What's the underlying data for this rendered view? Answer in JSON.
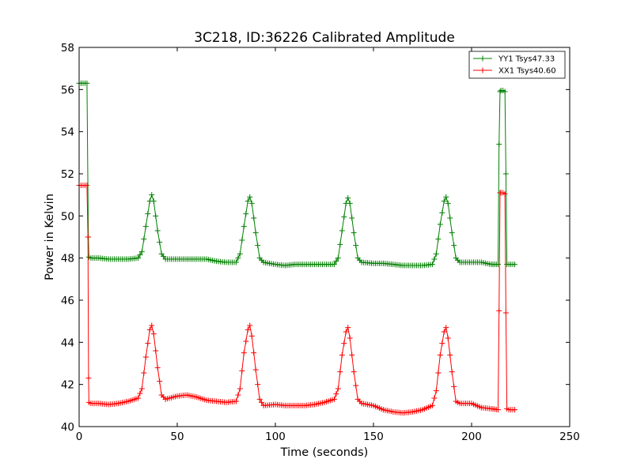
{
  "chart_data": {
    "type": "line",
    "title": "3C218, ID:36226 Calibrated Amplitude",
    "xlabel": "Time (seconds)",
    "ylabel": "Power in Kelvin",
    "xlim": [
      0,
      250
    ],
    "ylim": [
      40,
      58
    ],
    "xticks": [
      "0",
      "50",
      "100",
      "150",
      "200",
      "250"
    ],
    "yticks": [
      "40",
      "42",
      "44",
      "46",
      "48",
      "50",
      "52",
      "54",
      "56",
      "58"
    ],
    "grid": false,
    "legend_position": "top-right",
    "marker": "+",
    "series": [
      {
        "name": "YY1 Tsys47.33",
        "color": "#008000",
        "x": [
          0,
          2,
          4,
          4.7,
          5,
          6,
          10,
          15,
          20,
          25,
          30,
          32,
          34,
          36,
          37,
          38,
          40,
          42,
          44,
          50,
          55,
          60,
          65,
          70,
          75,
          80,
          82,
          84,
          86,
          87,
          88,
          90,
          92,
          94,
          100,
          105,
          110,
          115,
          120,
          125,
          130,
          132,
          134,
          136,
          137,
          138,
          140,
          142,
          144,
          150,
          155,
          160,
          165,
          170,
          175,
          180,
          182,
          184,
          186,
          187,
          188,
          190,
          192,
          194,
          200,
          205,
          210,
          213.5,
          214,
          214.5,
          215,
          216,
          217,
          217.5,
          218,
          219,
          220,
          222
        ],
        "y": [
          56.3,
          56.3,
          56.3,
          49.0,
          48.05,
          48.0,
          48.0,
          47.95,
          47.95,
          47.95,
          48.0,
          48.3,
          49.5,
          50.7,
          51.0,
          50.7,
          49.3,
          48.2,
          47.95,
          47.95,
          47.95,
          47.95,
          47.95,
          47.85,
          47.8,
          47.8,
          48.2,
          49.5,
          50.7,
          50.9,
          50.6,
          49.2,
          48.0,
          47.8,
          47.7,
          47.65,
          47.7,
          47.7,
          47.7,
          47.7,
          47.7,
          48.0,
          49.3,
          50.6,
          50.85,
          50.6,
          49.2,
          48.0,
          47.8,
          47.75,
          47.75,
          47.7,
          47.65,
          47.65,
          47.65,
          47.7,
          48.2,
          49.6,
          50.7,
          50.9,
          50.6,
          49.2,
          48.0,
          47.8,
          47.8,
          47.8,
          47.7,
          47.7,
          53.4,
          55.9,
          55.95,
          55.95,
          55.9,
          52.0,
          47.7,
          47.7,
          47.7,
          47.7
        ]
      },
      {
        "name": "XX1 Tsys40.60",
        "color": "#ff0000",
        "x": [
          0,
          2,
          4,
          4.5,
          4.8,
          5,
          6,
          10,
          15,
          20,
          25,
          30,
          32,
          34,
          36,
          37,
          38,
          40,
          42,
          44,
          50,
          55,
          60,
          65,
          70,
          75,
          80,
          82,
          84,
          86,
          87,
          88,
          90,
          92,
          94,
          100,
          105,
          110,
          115,
          120,
          125,
          130,
          132,
          134,
          136,
          137,
          138,
          140,
          142,
          144,
          150,
          155,
          160,
          165,
          170,
          175,
          180,
          182,
          184,
          186,
          187,
          188,
          190,
          192,
          194,
          200,
          205,
          210,
          213.5,
          214,
          214.5,
          215,
          216,
          217,
          217.5,
          218,
          219,
          220,
          222
        ],
        "y": [
          51.45,
          51.45,
          51.45,
          49.0,
          42.3,
          41.15,
          41.1,
          41.1,
          41.05,
          41.1,
          41.2,
          41.35,
          41.8,
          43.3,
          44.6,
          44.8,
          44.4,
          42.8,
          41.5,
          41.3,
          41.45,
          41.5,
          41.4,
          41.25,
          41.2,
          41.15,
          41.2,
          41.8,
          43.5,
          44.6,
          44.8,
          44.3,
          42.7,
          41.3,
          41.0,
          41.05,
          41.0,
          41.0,
          41.0,
          41.05,
          41.15,
          41.3,
          41.8,
          43.4,
          44.5,
          44.7,
          44.2,
          42.6,
          41.3,
          41.1,
          41.0,
          40.8,
          40.7,
          40.65,
          40.7,
          40.8,
          41.0,
          41.7,
          43.4,
          44.5,
          44.7,
          44.2,
          42.6,
          41.2,
          41.1,
          41.1,
          40.9,
          40.85,
          40.8,
          45.5,
          51.1,
          51.1,
          51.1,
          51.05,
          45.4,
          40.85,
          40.8,
          40.8,
          40.8
        ]
      }
    ]
  }
}
